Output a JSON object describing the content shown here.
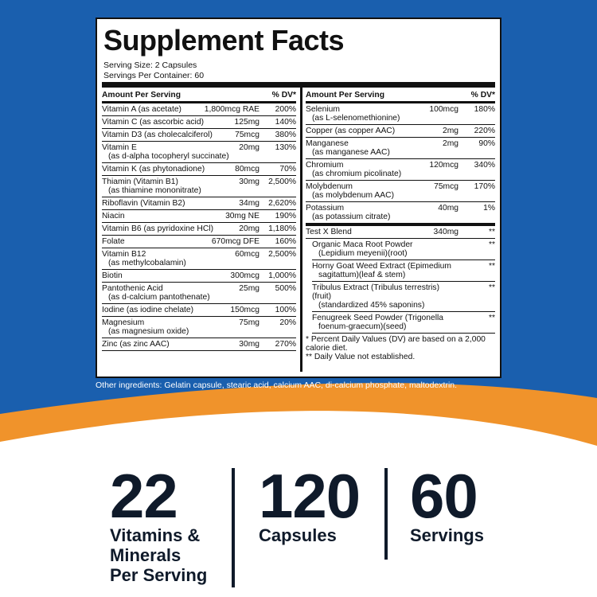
{
  "header": {
    "title": "Supplement Facts",
    "serving_size": "Serving Size: 2 Capsules",
    "servings": "Servings Per Container: 60"
  },
  "left_table": {
    "header": [
      "Amount Per Serving",
      "% DV*"
    ],
    "rows": [
      {
        "name": "Vitamin A (as acetate)",
        "amount": "1,800mcg RAE",
        "dv": "200%"
      },
      {
        "name": "Vitamin C (as ascorbic acid)",
        "amount": "125mg",
        "dv": "140%"
      },
      {
        "name": "Vitamin D3 (as cholecalciferol)",
        "amount": "75mcg",
        "dv": "380%"
      },
      {
        "name": "Vitamin E",
        "sub": "(as d-alpha tocopheryl succinate)",
        "amount": "20mg",
        "dv": "130%"
      },
      {
        "name": "Vitamin K (as phytonadione)",
        "amount": "80mcg",
        "dv": "70%"
      },
      {
        "name": "Thiamin (Vitamin B1)",
        "sub": "(as thiamine mononitrate)",
        "amount": "30mg",
        "dv": "2,500%"
      },
      {
        "name": "Riboflavin (Vitamin B2)",
        "amount": "34mg",
        "dv": "2,620%"
      },
      {
        "name": "Niacin",
        "amount": "30mg NE",
        "dv": "190%"
      },
      {
        "name": "Vitamin B6 (as pyridoxine HCl)",
        "amount": "20mg",
        "dv": "1,180%"
      },
      {
        "name": "Folate",
        "amount": "670mcg DFE",
        "dv": "160%"
      },
      {
        "name": "Vitamin B12",
        "sub": "(as methylcobalamin)",
        "amount": "60mcg",
        "dv": "2,500%"
      },
      {
        "name": "Biotin",
        "amount": "300mcg",
        "dv": "1,000%"
      },
      {
        "name": "Pantothenic Acid",
        "sub": "(as d-calcium pantothenate)",
        "amount": "25mg",
        "dv": "500%"
      },
      {
        "name": "Iodine (as iodine chelate)",
        "amount": "150mcg",
        "dv": "100%"
      },
      {
        "name": "Magnesium",
        "sub": "(as magnesium oxide)",
        "amount": "75mg",
        "dv": "20%"
      },
      {
        "name": "Zinc (as zinc AAC)",
        "amount": "30mg",
        "dv": "270%"
      }
    ]
  },
  "right_table": {
    "header": [
      "Amount Per Serving",
      "% DV*"
    ],
    "rows": [
      {
        "name": "Selenium",
        "sub": "(as L-selenomethionine)",
        "amount": "100mcg",
        "dv": "180%"
      },
      {
        "name": "Copper (as copper AAC)",
        "amount": "2mg",
        "dv": "220%"
      },
      {
        "name": "Manganese",
        "sub": "(as manganese AAC)",
        "amount": "2mg",
        "dv": "90%"
      },
      {
        "name": "Chromium",
        "sub": "(as chromium picolinate)",
        "amount": "120mcg",
        "dv": "340%"
      },
      {
        "name": "Molybdenum",
        "sub": "(as molybdenum AAC)",
        "amount": "75mcg",
        "dv": "170%"
      },
      {
        "name": "Potassium",
        "sub": "(as potassium citrate)",
        "amount": "40mg",
        "dv": "1%"
      }
    ],
    "blend": {
      "name": "Test X Blend",
      "amount": "340mg",
      "dv": "**",
      "items": [
        {
          "name": "Organic Maca Root Powder",
          "sub": "(Lepidium meyenii)(root)",
          "dv": "**"
        },
        {
          "name": "Horny Goat Weed Extract (Epimedium",
          "sub": "sagitattum)(leaf & stem)",
          "dv": "**"
        },
        {
          "name": "Tribulus Extract (Tribulus terrestris)(fruit)",
          "sub": "(standardized 45% saponins)",
          "dv": "**"
        },
        {
          "name": "Fenugreek Seed Powder (Trigonella",
          "sub": "foenum-graecum)(seed)",
          "dv": "**"
        }
      ]
    },
    "footnotes": [
      "* Percent Daily Values (DV) are based on a 2,000 calorie diet.",
      "** Daily Value not established."
    ]
  },
  "other_ingredients": "Other ingredients: Gelatin capsule, stearic acid, calcium AAC, di-calcium phosphate, maltodextrin.",
  "stats": [
    {
      "number": "22",
      "label": [
        "Vitamins &",
        "Minerals",
        "Per Serving"
      ]
    },
    {
      "number": "120",
      "label": [
        "Capsules"
      ]
    },
    {
      "number": "60",
      "label": [
        "Servings"
      ]
    }
  ]
}
